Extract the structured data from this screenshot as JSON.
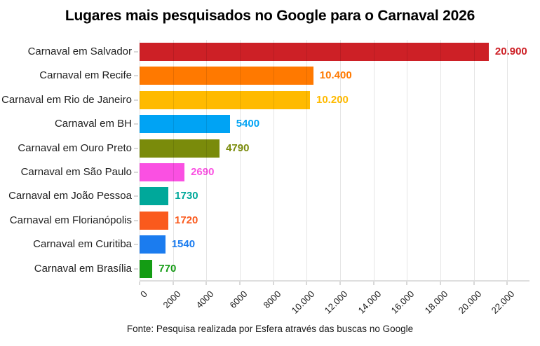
{
  "chart_data": {
    "type": "bar",
    "orientation": "horizontal",
    "title": "Lugares mais pesquisados no Google para o Carnaval 2026",
    "categories": [
      "Carnaval em Salvador",
      "Carnaval em Recife",
      "Carnaval em Rio de Janeiro",
      "Carnaval em BH",
      "Carnaval em Ouro Preto",
      "Carnaval em São Paulo",
      "Carnaval em João Pessoa",
      "Carnaval em Florianópolis",
      "Carnaval em Curitiba",
      "Carnaval em Brasília"
    ],
    "values": [
      20900,
      10400,
      10200,
      5400,
      4790,
      2690,
      1730,
      1720,
      1540,
      770
    ],
    "value_labels": [
      "20.900",
      "10.400",
      "10.200",
      "5400",
      "4790",
      "2690",
      "1730",
      "1720",
      "1540",
      "770"
    ],
    "bar_colors": [
      "#cd2026",
      "#ff7900",
      "#ffba00",
      "#00a3f4",
      "#7a8b0b",
      "#fa50e2",
      "#00a89a",
      "#fa5a1d",
      "#1b7cef",
      "#149c14"
    ],
    "xlabel": "",
    "ylabel": "",
    "x_ticks": [
      "0",
      "2000",
      "4000",
      "6000",
      "8000",
      "10.000",
      "12.000",
      "14.000",
      "16.000",
      "18.000",
      "20.000",
      "22.000"
    ],
    "x_tick_values": [
      0,
      2000,
      4000,
      6000,
      8000,
      10000,
      12000,
      14000,
      16000,
      18000,
      20000,
      22000
    ],
    "xlim": [
      0,
      23300
    ],
    "grid": "vertical",
    "legend": "none",
    "source": "Fonte: Pesquisa realizada por Esfera através das buscas no Google"
  },
  "colors": {
    "background": "#ffffff",
    "gridline": "#e3e3e3",
    "axis_line": "#dedede",
    "label_text": "#1f1f1f",
    "title_text": "#000000"
  }
}
